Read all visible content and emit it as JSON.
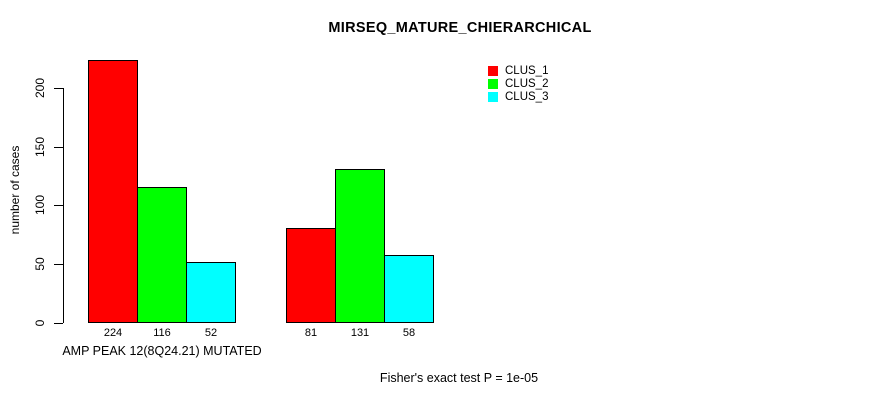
{
  "chart_data": {
    "type": "bar",
    "title": "MIRSEQ_MATURE_CHIERARCHICAL",
    "ylabel": "number of cases",
    "xlabel": "AMP PEAK 12(8Q24.21) MUTATED",
    "annotation": "Fisher's exact test P = 1e-05",
    "categories": [
      "AMP PEAK 12(8Q24.21) MUTATED",
      ""
    ],
    "series": [
      {
        "name": "CLUS_1",
        "color": "#ff0000",
        "values": [
          224,
          81
        ]
      },
      {
        "name": "CLUS_2",
        "color": "#00ff00",
        "values": [
          116,
          131
        ]
      },
      {
        "name": "CLUS_3",
        "color": "#00ffff",
        "values": [
          52,
          58
        ]
      }
    ],
    "yticks": [
      0,
      50,
      100,
      150,
      200
    ],
    "ylim": [
      0,
      230
    ],
    "grid": false,
    "legend_position": "top-right",
    "bar_value_labels": true,
    "bar_border_color": "#000000",
    "text_color": "#000000",
    "background_color": "#ffffff"
  }
}
